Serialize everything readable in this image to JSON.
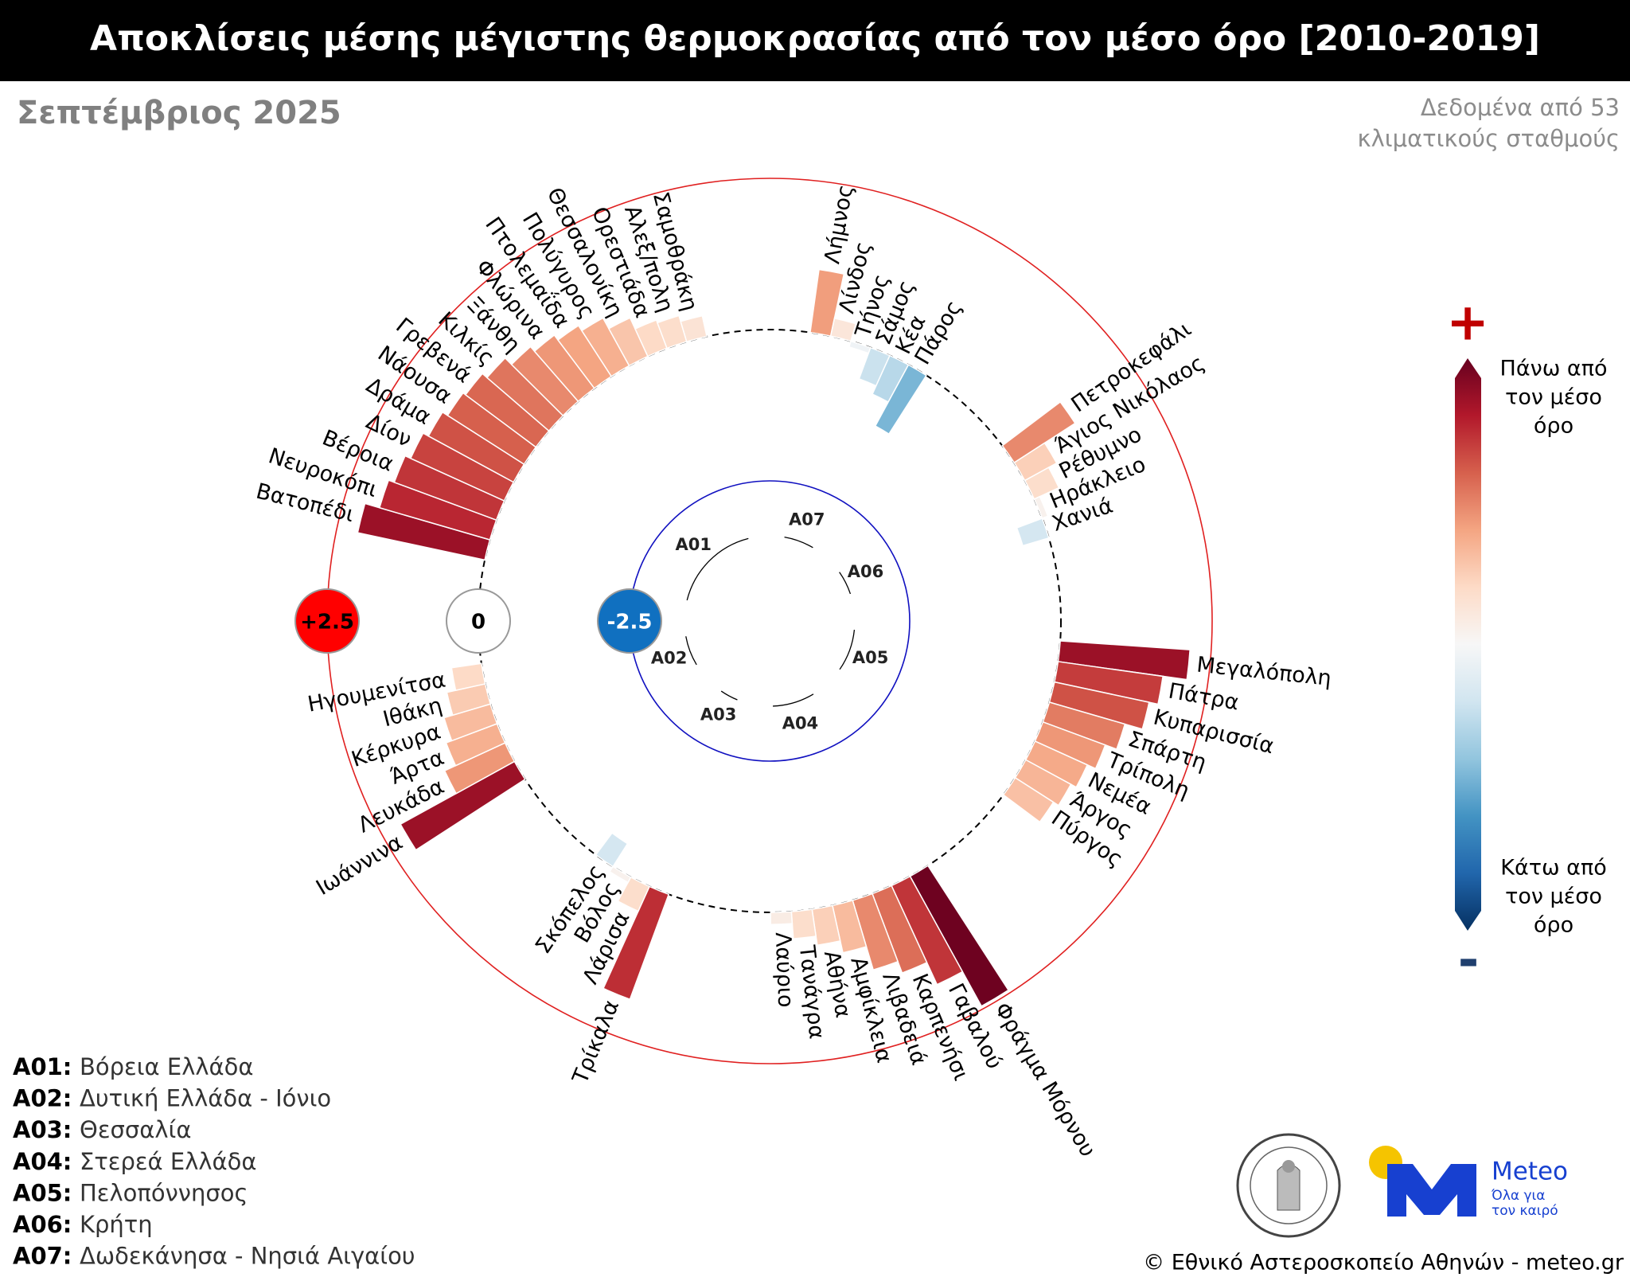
{
  "chart_data": {
    "type": "radial_bar",
    "title": "Αποκλίσεις μέσης μέγιστης θερμοκρασίας από τον μέσο όρο [2010-2019]",
    "subtitle": "Σεπτέμβριος 2025",
    "note": [
      "Δεδομένα από 53",
      "κλιματικούς σταθμούς"
    ],
    "ylim": [
      -2.5,
      2.5
    ],
    "yticks": [
      {
        "value": 2.5,
        "label": "+2.5"
      },
      0,
      -2.5
    ],
    "colorscale": [
      "#053061",
      "#2166ac",
      "#4393c3",
      "#92c5de",
      "#d1e5f0",
      "#f7f7f7",
      "#fddbc7",
      "#f4a582",
      "#d6604d",
      "#b2182b",
      "#67001f"
    ],
    "colorbar": {
      "plus": "+",
      "minus": "-",
      "top": [
        "Πάνω από",
        "τον μέσο",
        "όρο"
      ],
      "bottom": [
        "Κάτω από",
        "τον μέσο",
        "όρο"
      ]
    },
    "groups": [
      {
        "code": "A01",
        "categories": [
          "Βατοπέδι",
          "Νευροκόπι",
          "Βέροια",
          "Δίον",
          "Δράμα",
          "Νάουσα",
          "Γρεβενά",
          "Κιλκίς",
          "Ξάνθη",
          "Φλώρινα",
          "Πτολεμαΐδα",
          "Πολύγυρος",
          "Θεσσαλονίκη",
          "Ορεστιάδα",
          "Αλεξ/πολη",
          "Σαμοθράκη"
        ],
        "values": [
          2.15,
          1.9,
          1.8,
          1.7,
          1.6,
          1.5,
          1.45,
          1.35,
          1.2,
          1.1,
          1.0,
          0.9,
          0.7,
          0.5,
          0.45,
          0.35
        ]
      },
      {
        "code": "A02",
        "categories": [
          "Ιωάννινα",
          "Λευκάδα",
          "Άρτα",
          "Κέρκυρα",
          "Ιθάκη",
          "Ηγουμενίτσα"
        ],
        "values": [
          2.15,
          1.1,
          0.9,
          0.8,
          0.65,
          0.5
        ]
      },
      {
        "code": "A03",
        "categories": [
          "Τρίκαλα",
          "Λάρισα",
          "Βόλος",
          "Σκόπελος"
        ],
        "values": [
          1.85,
          0.45,
          0.1,
          -0.45
        ]
      },
      {
        "code": "A04",
        "categories": [
          "Φράγμα Μόρνου",
          "Γαβαλού",
          "Καρπενήσι",
          "Λιβαδειά",
          "Αμφίκλεια",
          "Αθήνα",
          "Τανάγρα",
          "Λαύριο"
        ],
        "values": [
          2.45,
          1.8,
          1.4,
          1.2,
          0.8,
          0.6,
          0.45,
          0.2
        ]
      },
      {
        "code": "A05",
        "categories": [
          "Μεγαλόπολη",
          "Πάτρα",
          "Κυπαρισσία",
          "Σπάρτη",
          "Τρίπολη",
          "Νεμέα",
          "Άργος",
          "Πύργος"
        ],
        "values": [
          2.15,
          1.75,
          1.6,
          1.3,
          1.1,
          0.95,
          0.85,
          0.75
        ]
      },
      {
        "code": "A06",
        "categories": [
          "Πετροκεφάλι",
          "Άγιος Νικόλαος",
          "Ρέθυμνο",
          "Ηράκλειο",
          "Χανιά"
        ],
        "values": [
          1.2,
          0.6,
          0.45,
          0.1,
          -0.45
        ]
      },
      {
        "code": "A07",
        "categories": [
          "Λήμνος",
          "Λίνδος",
          "Τήνος",
          "Σάμος",
          "Κέα",
          "Πάρος"
        ],
        "values": [
          1.05,
          0.3,
          -0.1,
          -0.55,
          -0.7,
          -1.15
        ]
      }
    ],
    "region_legend": [
      {
        "key": "A01:",
        "label": "Βόρεια Ελλάδα"
      },
      {
        "key": "A02:",
        "label": "Δυτική Ελλάδα - Ιόνιο"
      },
      {
        "key": "A03:",
        "label": "Θεσσαλία"
      },
      {
        "key": "A04:",
        "label": "Στερεά Ελλάδα"
      },
      {
        "key": "A05:",
        "label": "Πελοπόννησος"
      },
      {
        "key": "A06:",
        "label": "Κρήτη"
      },
      {
        "key": "A07:",
        "label": "Δωδεκάνησα - Νησιά Αιγαίου"
      }
    ],
    "logo": {
      "name": "Meteo",
      "tagline": [
        "Όλα για",
        "τον καιρό"
      ]
    },
    "footer": "© Εθνικό Αστεροσκοπείο Αθηνών - meteo.gr"
  }
}
